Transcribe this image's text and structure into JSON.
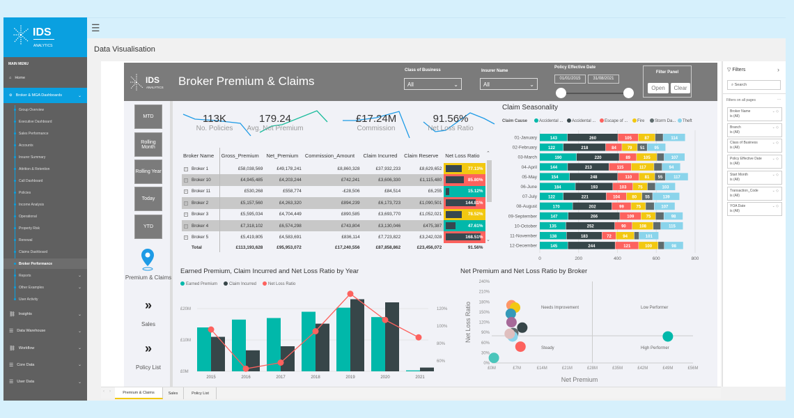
{
  "app": {
    "logo_text": "IDS",
    "logo_sub": "ANALYTICS",
    "page_title": "Data Visualisation"
  },
  "sidebar": {
    "main_menu": "MAIN MENU",
    "home": "Home",
    "broker_section": "Broker & MGA Dashboards",
    "sub_items": [
      "Group Overview",
      "Executive Dashboard",
      "Sales Performance",
      "Accounts",
      "Insurer Summary",
      "Attrition & Retention",
      "Call Dashboard",
      "Policies",
      "Income Analysis",
      "Operational",
      "Property Risk",
      "Renewal",
      "Claims Dashboard",
      "Broker Performance",
      "Reports",
      "Other Examples",
      "User Activity"
    ],
    "active_item": "Broker Performance",
    "sections": [
      {
        "label": "Insights",
        "icon": "binoculars-icon"
      },
      {
        "label": "Data Warehouse",
        "icon": "database-icon"
      },
      {
        "label": "Workflow",
        "icon": "binoculars-icon"
      },
      {
        "label": "Core Data",
        "icon": "database-icon"
      },
      {
        "label": "User Data",
        "icon": "database-icon"
      }
    ]
  },
  "report": {
    "title": "Broker Premium & Claims",
    "logo_text": "IDS",
    "logo_sub": "ANALYTICS",
    "class_of_business": {
      "label": "Class of Business",
      "value": "All"
    },
    "insurer_name": {
      "label": "Insurer Name",
      "value": "All"
    },
    "policy_date": {
      "label": "Policy Effective Date",
      "start": "01/01/2015",
      "end": "31/08/2021"
    },
    "filter_panel": {
      "label": "Filter Panel",
      "open": "Open",
      "clear": "Clear"
    },
    "period_buttons": [
      "MTD",
      "Rolling Month",
      "Rolling Year",
      "Today",
      "YTD"
    ],
    "page_nav": [
      {
        "label": "Premium & Claims",
        "icon": "map-pin-icon"
      },
      {
        "label": "Sales",
        "icon": "double-chevron-right-icon"
      },
      {
        "label": "Policy List",
        "icon": "double-chevron-right-icon"
      }
    ]
  },
  "kpis": [
    {
      "value": "113K",
      "label": "No. Policies",
      "color": "#1e9be6"
    },
    {
      "value": "179.24",
      "label": "Avg. Net Premium",
      "color": "#1abc9c"
    },
    {
      "value": "£17.24M",
      "label": "Commission",
      "color": "#1e9be6"
    },
    {
      "value": "91.56%",
      "label": "Net Loss Ratio",
      "color": "#1e9be6"
    }
  ],
  "table": {
    "columns": [
      "Broker Name",
      "Gross_Premium",
      "Net_Premium",
      "Commission_Amount",
      "Claim Incurred",
      "Claim Reserve",
      "Net Loss Ratio"
    ],
    "rows": [
      [
        "Broker 1",
        "£58,038,569",
        "£49,178,241",
        "£8,860,328",
        "£37,932,233",
        "£8,629,652",
        "77.13%"
      ],
      [
        "Broker 10",
        "£4,945,485",
        "£4,203,244",
        "£742,241",
        "£3,606,330",
        "£1,115,480",
        "85.80%"
      ],
      [
        "Broker 11",
        "£530,268",
        "£558,774",
        "-£28,506",
        "£84,514",
        "£6,255",
        "15.12%"
      ],
      [
        "Broker 2",
        "£5,157,560",
        "£4,263,320",
        "£894,239",
        "£6,173,723",
        "£1,090,501",
        "144.81%"
      ],
      [
        "Broker 3",
        "£5,595,034",
        "£4,704,449",
        "£890,585",
        "£3,693,770",
        "£1,052,021",
        "78.52%"
      ],
      [
        "Broker 4",
        "£7,318,102",
        "£6,574,298",
        "£743,804",
        "£3,130,046",
        "£475,387",
        "47.61%"
      ],
      [
        "Broker 5",
        "£5,419,805",
        "£4,583,691",
        "£836,114",
        "£7,723,822",
        "£3,242,028",
        "168.51%"
      ]
    ],
    "nlr_values": [
      77.13,
      85.8,
      15.12,
      144.81,
      78.52,
      47.61,
      168.51
    ],
    "nlr_colors": [
      "#f2c811",
      "#fd625e",
      "#01b8aa",
      "#fd625e",
      "#f2c811",
      "#01b8aa",
      "#fd625e"
    ],
    "total": [
      "Total",
      "£113,193,628",
      "£95,953,072",
      "£17,240,556",
      "£87,858,862",
      "£23,456,072",
      "91.56%"
    ]
  },
  "chart_data": [
    {
      "type": "bar",
      "orientation": "horizontal",
      "stacked": true,
      "title": "Claim Seasonality",
      "legend_title": "Claim Cause",
      "legend_position": "top",
      "categories": [
        "01-January",
        "02-February",
        "03-March",
        "04-April",
        "05-May",
        "06-June",
        "07-July",
        "08-August",
        "09-September",
        "10-October",
        "11-November",
        "12-December"
      ],
      "series": [
        {
          "name": "Accidental ...",
          "color": "#01b8aa",
          "values": [
            143,
            122,
            190,
            144,
            154,
            184,
            122,
            170,
            147,
            135,
            138,
            145
          ]
        },
        {
          "name": "Accidental ...",
          "color": "#374649",
          "values": [
            260,
            218,
            220,
            213,
            248,
            193,
            221,
            202,
            266,
            252,
            183,
            244
          ]
        },
        {
          "name": "Escape of ...",
          "color": "#fd625e",
          "values": [
            105,
            84,
            89,
            115,
            110,
            103,
            104,
            99,
            109,
            90,
            72,
            121
          ]
        },
        {
          "name": "Fire",
          "color": "#f2c811",
          "values": [
            87,
            79,
            105,
            117,
            81,
            75,
            80,
            75,
            75,
            108,
            94,
            100
          ]
        },
        {
          "name": "Storm Da...",
          "color": "#5f6b6d",
          "values": [
            41,
            51,
            37,
            42,
            55,
            41,
            55,
            44,
            43,
            39,
            25,
            32
          ]
        },
        {
          "name": "Theft",
          "color": "#8ad4eb",
          "values": [
            114,
            95,
            107,
            94,
            117,
            103,
            139,
            107,
            98,
            115,
            101,
            98
          ]
        }
      ],
      "xlim": [
        0,
        800
      ],
      "xticks": [
        "0",
        "200",
        "400",
        "600",
        "800"
      ]
    },
    {
      "type": "bar",
      "title": "Earned Premium, Claim Incurred and Net Loss Ratio by Year",
      "categories": [
        "2015",
        "2016",
        "2017",
        "2018",
        "2019",
        "2020",
        "2021"
      ],
      "series": [
        {
          "name": "Earned Premium",
          "color": "#01b8aa",
          "values": [
            14,
            16.5,
            17,
            19,
            20.3,
            17.3,
            0.3
          ],
          "unit": "£M"
        },
        {
          "name": "Claim Incurred",
          "color": "#374649",
          "values": [
            11,
            6.7,
            8,
            15.2,
            23,
            22,
            1.2
          ],
          "unit": "£M"
        },
        {
          "name": "Net Loss Ratio",
          "type": "line",
          "color": "#fd625e",
          "values": [
            96,
            51,
            58,
            94,
            137,
            107,
            87
          ],
          "unit": "%",
          "axis": "right"
        }
      ],
      "ylim": [
        0,
        25
      ],
      "yticks": [
        "£0M",
        "£10M",
        "£20M"
      ],
      "y2lim": [
        48,
        138
      ],
      "y2ticks": [
        "60%",
        "80%",
        "100%",
        "120%"
      ],
      "legend_position": "top-left"
    },
    {
      "type": "scatter",
      "title": "Net Premium and Net Loss Ratio by Broker",
      "xlabel": "Net Premium",
      "ylabel": "Net Loss Ratio",
      "xlim": [
        0,
        56
      ],
      "xticks": [
        "£0M",
        "£7M",
        "£14M",
        "£21M",
        "£28M",
        "£35M",
        "£42M",
        "£49M",
        "£56M"
      ],
      "ylim": [
        0,
        240
      ],
      "yticks": [
        "0%",
        "30%",
        "60%",
        "90%",
        "120%",
        "150%",
        "180%",
        "210%",
        "240%"
      ],
      "reference_lines": {
        "x": 28,
        "y": 80
      },
      "quadrant_labels": [
        "Needs Improvement",
        "Low Performer",
        "Steady",
        "High Performer"
      ],
      "points": [
        {
          "x": 5.5,
          "y": 170,
          "color": "#fe9666"
        },
        {
          "x": 6.5,
          "y": 163,
          "color": "#f2c811"
        },
        {
          "x": 5.3,
          "y": 145,
          "color": "#3599b8"
        },
        {
          "x": 5.5,
          "y": 120,
          "color": "#a66999"
        },
        {
          "x": 8.5,
          "y": 104,
          "color": "#374649"
        },
        {
          "x": 6,
          "y": 88,
          "color": "#5f6b6d"
        },
        {
          "x": 5.8,
          "y": 78,
          "color": "#8ad4eb"
        },
        {
          "x": 5,
          "y": 86,
          "color": "#dfbfbf"
        },
        {
          "x": 8,
          "y": 48,
          "color": "#fd625e"
        },
        {
          "x": 0.6,
          "y": 15,
          "color": "#4ac5bb"
        },
        {
          "x": 49,
          "y": 78,
          "color": "#01b8aa"
        }
      ]
    }
  ],
  "filters": {
    "title": "Filters",
    "search_placeholder": "Search",
    "section": "Filters on all pages",
    "more": "...",
    "cards": [
      {
        "name": "Broker Name",
        "value": "is (All)"
      },
      {
        "name": "Branch",
        "value": "is (All)"
      },
      {
        "name": "Class of Business",
        "value": "is (All)"
      },
      {
        "name": "Policy Effective Date",
        "value": "is (All)"
      },
      {
        "name": "Start Month",
        "value": "is (All)"
      },
      {
        "name": "Transaction_Code",
        "value": "is (All)"
      },
      {
        "name": "YOA Date",
        "value": "is (All)"
      }
    ]
  },
  "tabs": [
    {
      "label": "Premium & Claims",
      "active": true
    },
    {
      "label": "Sales"
    },
    {
      "label": "Policy List"
    }
  ]
}
